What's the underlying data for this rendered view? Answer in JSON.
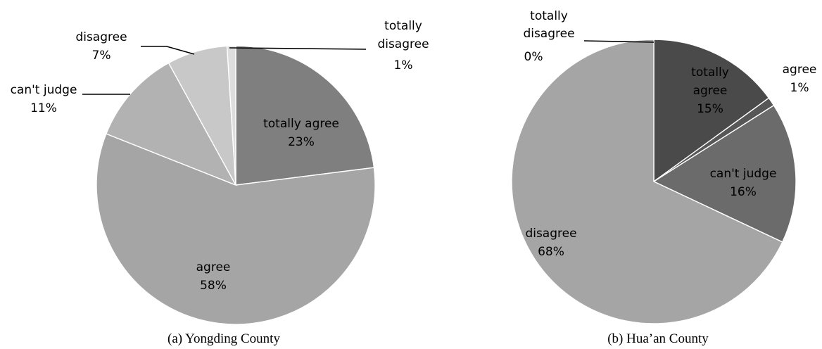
{
  "chart_data": [
    {
      "type": "pie",
      "title": "(a) Yongding County",
      "slices": [
        {
          "label": "totally agree",
          "value": 23,
          "value_label": "23%",
          "color": "#7f7f7f"
        },
        {
          "label": "agree",
          "value": 58,
          "value_label": "58%",
          "color": "#a5a5a5"
        },
        {
          "label": "can't judge",
          "value": 11,
          "value_label": "11%",
          "color": "#b2b2b2"
        },
        {
          "label": "disagree",
          "value": 7,
          "value_label": "7%",
          "color": "#c8c8c8"
        },
        {
          "label": "totally disagree",
          "value": 1,
          "value_label": "1%",
          "color": "#dedede"
        }
      ]
    },
    {
      "type": "pie",
      "title": "(b) Hua’an County",
      "slices": [
        {
          "label": "totally agree",
          "value": 15,
          "value_label": "15%",
          "color": "#4a4a4a"
        },
        {
          "label": "agree",
          "value": 1,
          "value_label": "1%",
          "color": "#575757"
        },
        {
          "label": "can't judge",
          "value": 16,
          "value_label": "16%",
          "color": "#6b6b6b"
        },
        {
          "label": "disagree",
          "value": 68,
          "value_label": "68%",
          "color": "#a5a5a5"
        },
        {
          "label": "totally disagree",
          "value": 0,
          "value_label": "0%",
          "color": "#bdbdbd"
        }
      ]
    }
  ]
}
